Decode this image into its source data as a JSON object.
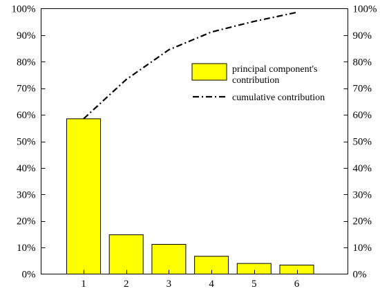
{
  "chart_data": {
    "type": "bar",
    "categories": [
      "1",
      "2",
      "3",
      "4",
      "5",
      "6"
    ],
    "series": [
      {
        "name": "principal component's contribution",
        "type": "bar",
        "values": [
          58.5,
          14.8,
          11.2,
          6.7,
          4.0,
          3.4
        ],
        "color": "#ffff00"
      },
      {
        "name": "cumulative contribution",
        "type": "line",
        "style": "dash-dot",
        "values": [
          58.5,
          73.3,
          84.5,
          91.2,
          95.2,
          98.6
        ],
        "color": "#000000"
      }
    ],
    "ylim": [
      0,
      100
    ],
    "y_ticks": [
      "0%",
      "10%",
      "20%",
      "30%",
      "40%",
      "50%",
      "60%",
      "70%",
      "80%",
      "90%",
      "100%"
    ],
    "y_tick_values": [
      0,
      10,
      20,
      30,
      40,
      50,
      60,
      70,
      80,
      90,
      100
    ],
    "secondary_y_axis": true,
    "legend_labels": [
      "principal component's",
      "contribution",
      "cumulative contribution"
    ],
    "legend_position": "upper-right",
    "grid": false
  }
}
